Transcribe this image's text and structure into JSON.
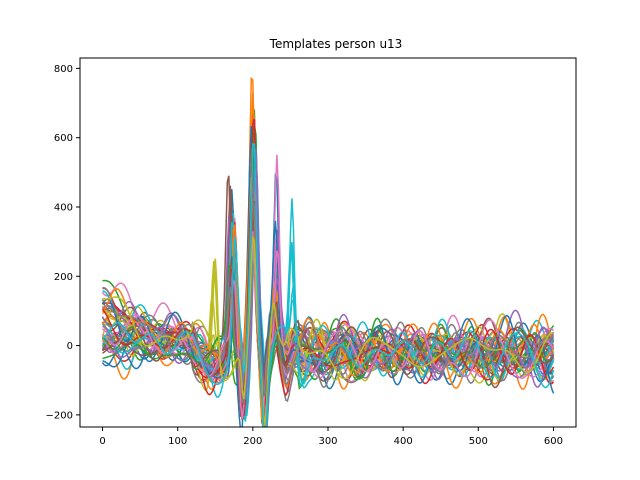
{
  "chart_data": {
    "type": "line",
    "title": "Templates person u13",
    "xlabel": "",
    "ylabel": "",
    "xlim": [
      -30,
      630
    ],
    "ylim": [
      -235,
      830
    ],
    "x_ticks": [
      0,
      100,
      200,
      300,
      400,
      500,
      600
    ],
    "y_ticks": [
      -200,
      0,
      200,
      400,
      600,
      800
    ],
    "x_tick_labels": [
      "0",
      "100",
      "200",
      "300",
      "400",
      "500",
      "600"
    ],
    "y_tick_labels": [
      "−200",
      "0",
      "200",
      "400",
      "600",
      "800"
    ],
    "grid": false,
    "legend": "none",
    "series_count": 50,
    "colors": [
      "#1f77b4",
      "#ff7f0e",
      "#2ca02c",
      "#d62728",
      "#9467bd",
      "#8c564b",
      "#e377c2",
      "#7f7f7f",
      "#bcbd22",
      "#17becf"
    ],
    "series": [
      {
        "start": 120,
        "main_peak": 600,
        "main_peak_x": 200,
        "secondary_peak": 450,
        "secondary_peak_x": 172,
        "late_peak": 480,
        "late_peak_x": 231
      },
      {
        "start": 90,
        "main_peak": 790,
        "main_peak_x": 199,
        "secondary_peak": 420,
        "secondary_peak_x": 174,
        "late_peak": 260,
        "late_peak_x": 230
      },
      {
        "start": 160,
        "main_peak": 700,
        "main_peak_x": 201,
        "secondary_peak": 380,
        "secondary_peak_x": 170,
        "late_peak": 340,
        "late_peak_x": 232
      },
      {
        "start": -30,
        "main_peak": 670,
        "main_peak_x": 200,
        "secondary_peak": 410,
        "secondary_peak_x": 173,
        "late_peak": 150,
        "late_peak_x": 229
      },
      {
        "start": 60,
        "main_peak": 630,
        "main_peak_x": 202,
        "secondary_peak": 460,
        "secondary_peak_x": 171,
        "late_peak": 330,
        "late_peak_x": 233
      },
      {
        "start": 80,
        "main_peak": 550,
        "main_peak_x": 198,
        "secondary_peak": 520,
        "secondary_peak_x": 170,
        "late_peak": 200,
        "late_peak_x": 230
      },
      {
        "start": 210,
        "main_peak": 610,
        "main_peak_x": 200,
        "secondary_peak": 360,
        "secondary_peak_x": 175,
        "late_peak": 490,
        "late_peak_x": 232
      },
      {
        "start": 20,
        "main_peak": 500,
        "main_peak_x": 201,
        "secondary_peak": 300,
        "secondary_peak_x": 172,
        "late_peak": 160,
        "late_peak_x": 231
      },
      {
        "start": 100,
        "main_peak": 580,
        "main_peak_x": 199,
        "secondary_peak": 305,
        "secondary_peak_x": 148,
        "late_peak": 280,
        "late_peak_x": 229
      },
      {
        "start": 130,
        "main_peak": 640,
        "main_peak_x": 203,
        "secondary_peak": 400,
        "secondary_peak_x": 174,
        "late_peak": 465,
        "late_peak_x": 252
      }
    ]
  }
}
